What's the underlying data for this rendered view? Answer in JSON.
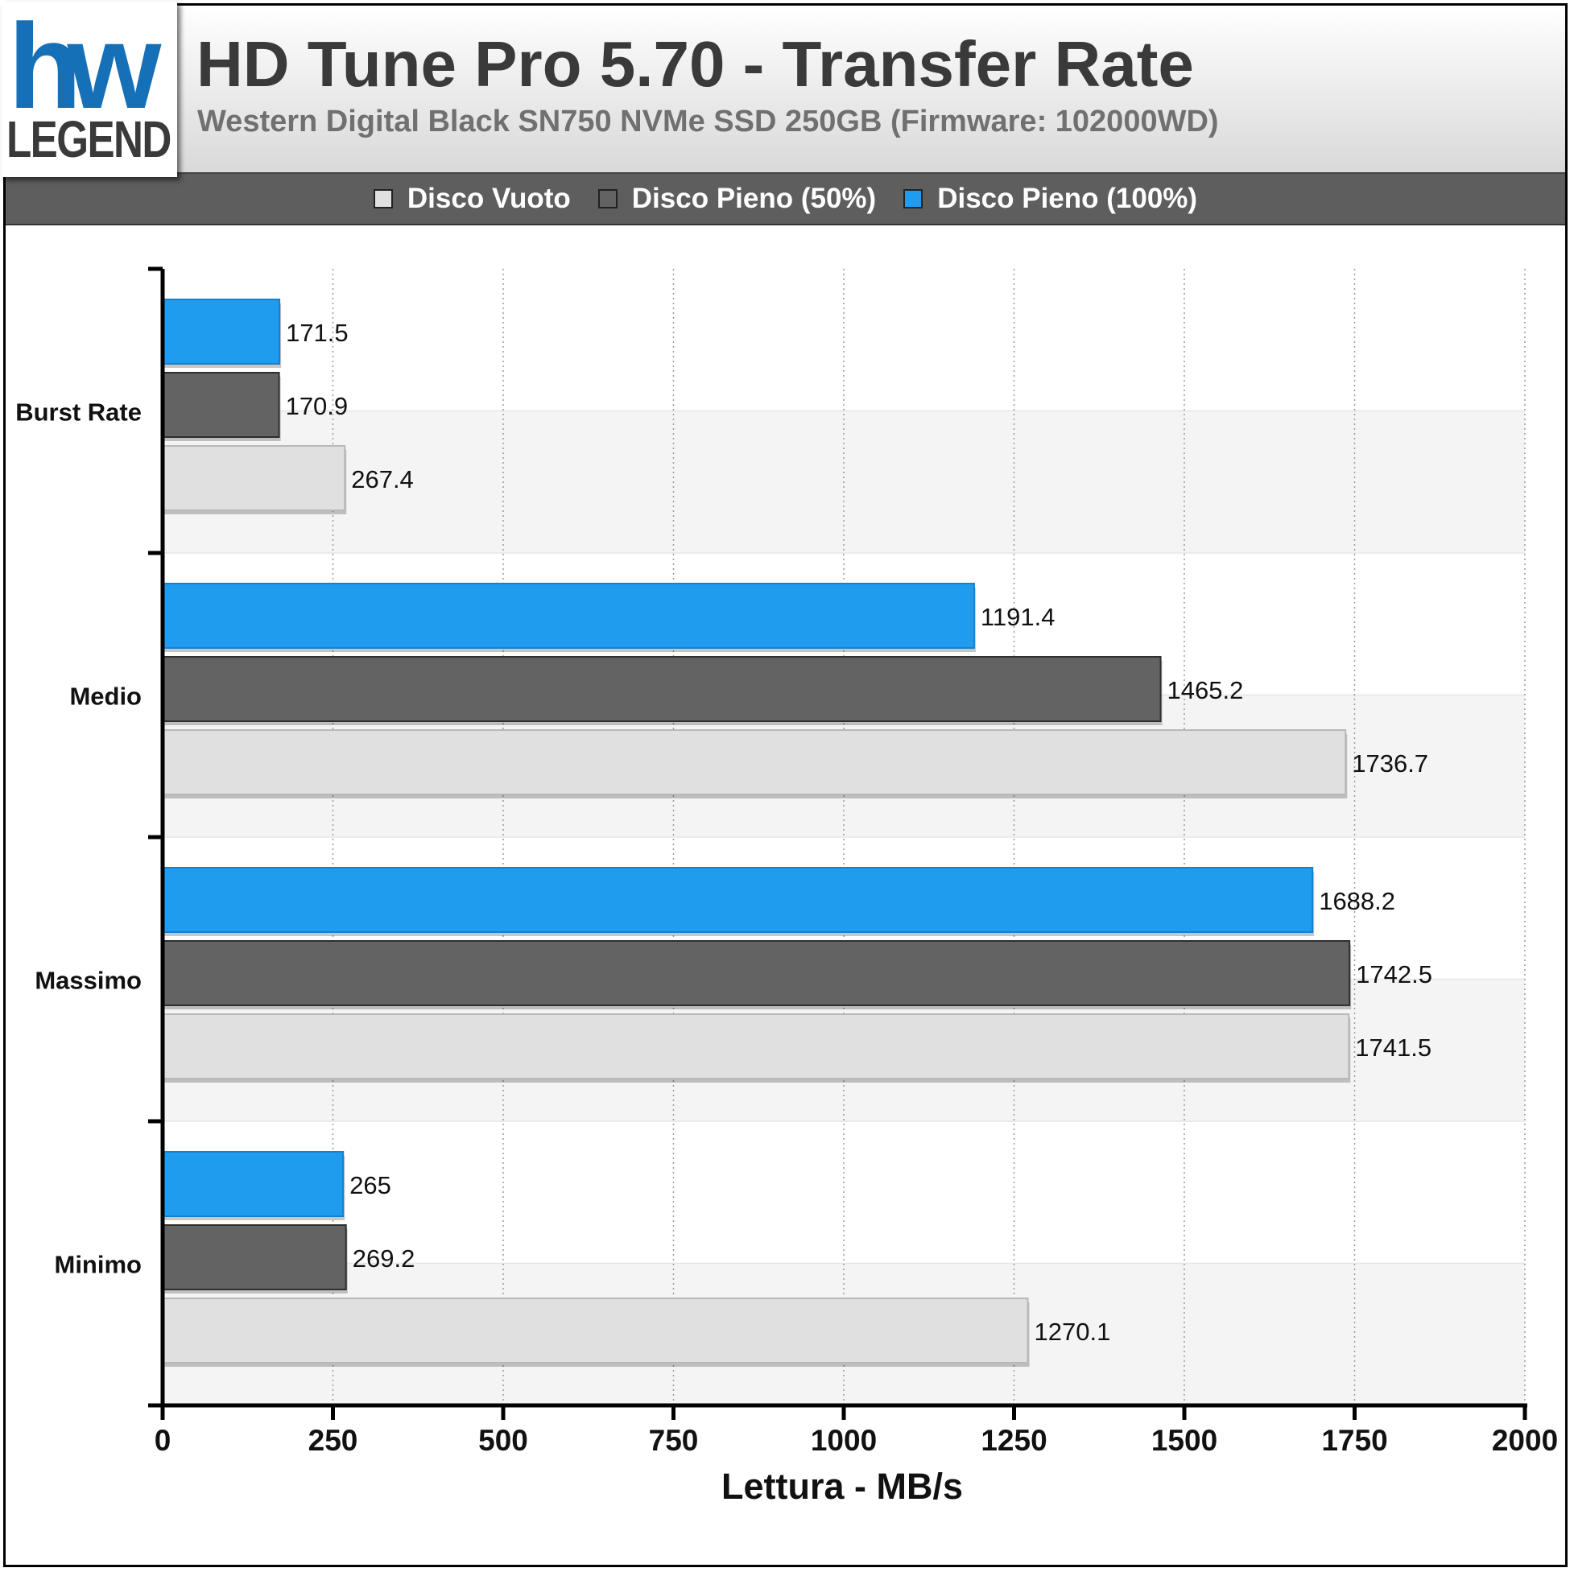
{
  "header": {
    "logo_text": "LEGEND",
    "logo_mark": "hw",
    "title": "HD Tune Pro 5.70 - Transfer Rate",
    "subtitle": "Western Digital Black SN750 NVMe SSD 250GB (Firmware: 102000WD)"
  },
  "legend": [
    {
      "label": "Disco Vuoto",
      "color": "#e0e0e0"
    },
    {
      "label": "Disco Pieno (50%)",
      "color": "#636363"
    },
    {
      "label": "Disco Pieno (100%)",
      "color": "#209cef"
    }
  ],
  "chart_data": {
    "type": "bar",
    "orientation": "horizontal",
    "title": "HD Tune Pro 5.70 - Transfer Rate",
    "subtitle": "Western Digital Black SN750 NVMe SSD 250GB (Firmware: 102000WD)",
    "xlabel": "Lettura - MB/s",
    "ylabel": "",
    "xlim": [
      0,
      2000
    ],
    "xticks": [
      0,
      250,
      500,
      750,
      1000,
      1250,
      1500,
      1750,
      2000
    ],
    "grid": true,
    "legend_position": "top",
    "categories": [
      "Burst Rate",
      "Medio",
      "Massimo",
      "Minimo"
    ],
    "series": [
      {
        "name": "Disco Pieno (100%)",
        "color": "#209cef",
        "values": [
          171.5,
          1191.4,
          1688.2,
          265
        ]
      },
      {
        "name": "Disco Pieno (50%)",
        "color": "#636363",
        "values": [
          170.9,
          1465.2,
          1742.5,
          269.2
        ]
      },
      {
        "name": "Disco Vuoto",
        "color": "#e0e0e0",
        "values": [
          267.4,
          1736.7,
          1741.5,
          1270.1
        ]
      }
    ],
    "value_labels": [
      [
        "171.5",
        "1191.4",
        "1688.2",
        "265"
      ],
      [
        "170.9",
        "1465.2",
        "1742.5",
        "269.2"
      ],
      [
        "267.4",
        "1736.7",
        "1741.5",
        "1270.1"
      ]
    ],
    "xtick_labels": [
      "0",
      "250",
      "500",
      "750",
      "1000",
      "1250",
      "1500",
      "1750",
      "2000"
    ]
  }
}
